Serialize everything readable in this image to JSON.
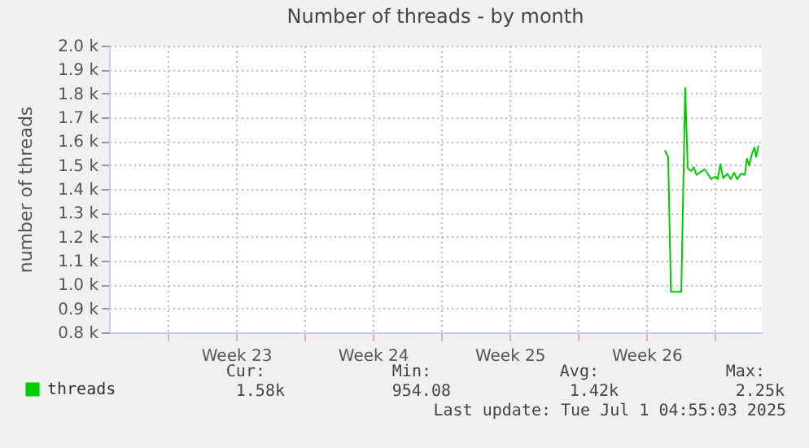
{
  "chart_data": {
    "type": "line",
    "title": "Number of threads - by month",
    "ylabel": "number of threads",
    "x": [
      "2025-06-27T10:34",
      "2025-06-27T14:38",
      "2025-06-27T18:00",
      "2025-06-28T06:43",
      "2025-06-28T11:31",
      "2025-06-28T14:38",
      "2025-06-28T18:43",
      "2025-06-28T22:05",
      "2025-06-29T01:26",
      "2025-06-29T06:00",
      "2025-06-29T11:31",
      "2025-06-29T16:05",
      "2025-06-29T19:26",
      "2025-06-30T00:43",
      "2025-06-30T03:22",
      "2025-06-30T06:43",
      "2025-06-30T10:05",
      "2025-06-30T15:22",
      "2025-06-30T19:26",
      "2025-06-30T23:31",
      "2025-07-01T03:22",
      "2025-07-01T07:55",
      "2025-07-01T12:43",
      "2025-07-01T15:22",
      "2025-07-01T18:00",
      "2025-07-01T22:05",
      "2025-07-02T00:43",
      "2025-07-02T02:38",
      "2025-07-02T05:31"
    ],
    "series": [
      {
        "name": "threads",
        "color": "#00cc00",
        "values": [
          1562,
          1532,
          970,
          970,
          1823,
          1487,
          1475,
          1491,
          1459,
          1470,
          1482,
          1459,
          1441,
          1452,
          1441,
          1504,
          1445,
          1464,
          1441,
          1468,
          1441,
          1464,
          1459,
          1527,
          1498,
          1554,
          1573,
          1534,
          1582
        ]
      }
    ],
    "xlim": [
      "2025-05-30T00:00",
      "2025-07-02T09:36"
    ],
    "xticks": [
      {
        "value": "2025-06-02",
        "label": null
      },
      {
        "value": "2025-06-05T12:00",
        "label": "Week 23"
      },
      {
        "value": "2025-06-09",
        "label": null
      },
      {
        "value": "2025-06-12T12:00",
        "label": "Week 24"
      },
      {
        "value": "2025-06-16",
        "label": null
      },
      {
        "value": "2025-06-19T12:00",
        "label": "Week 25"
      },
      {
        "value": "2025-06-23",
        "label": null
      },
      {
        "value": "2025-06-26T12:00",
        "label": "Week 26"
      },
      {
        "value": "2025-06-30",
        "label": null
      }
    ],
    "ylim": [
      800,
      2000
    ],
    "yticks": [
      {
        "value": 800,
        "label": "0.8 k"
      },
      {
        "value": 900,
        "label": "0.9 k"
      },
      {
        "value": 1000,
        "label": "1.0 k"
      },
      {
        "value": 1100,
        "label": "1.1 k"
      },
      {
        "value": 1200,
        "label": "1.2 k"
      },
      {
        "value": 1300,
        "label": "1.3 k"
      },
      {
        "value": 1400,
        "label": "1.4 k"
      },
      {
        "value": 1500,
        "label": "1.5 k"
      },
      {
        "value": 1600,
        "label": "1.6 k"
      },
      {
        "value": 1700,
        "label": "1.7 k"
      },
      {
        "value": 1800,
        "label": "1.8 k"
      },
      {
        "value": 1900,
        "label": "1.9 k"
      },
      {
        "value": 2000,
        "label": "2.0 k"
      }
    ],
    "grid": true,
    "legend": "bottom left",
    "marker": "none",
    "line_style": "solid",
    "annotations": [
      "Cur:",
      "Min:",
      "Avg:",
      "Max:",
      "1.58k",
      "954.08",
      "1.42k",
      "2.25k",
      "Last update: Tue Jul  1 04:55:03 2025"
    ]
  }
}
